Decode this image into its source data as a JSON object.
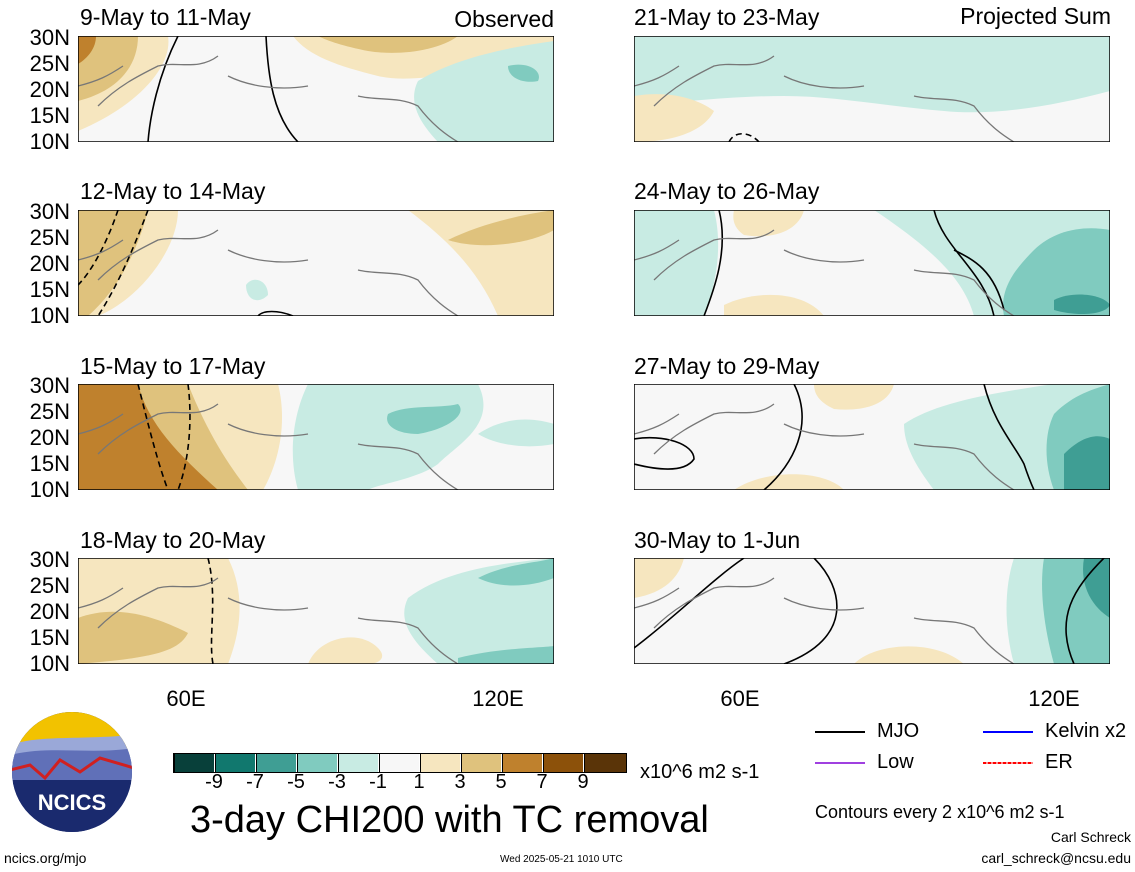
{
  "header": {
    "left_label": "Observed",
    "right_label": "Projected Sum"
  },
  "panels": [
    {
      "title": "9-May to 11-May"
    },
    {
      "title": "12-May to 14-May"
    },
    {
      "title": "15-May to 17-May"
    },
    {
      "title": "18-May to 20-May"
    },
    {
      "title": "21-May to 23-May"
    },
    {
      "title": "24-May to 26-May"
    },
    {
      "title": "27-May to 29-May"
    },
    {
      "title": "30-May to 1-Jun"
    }
  ],
  "axes": {
    "lat_labels": [
      "30N",
      "25N",
      "20N",
      "15N",
      "10N"
    ],
    "lon_labels": [
      "60E",
      "120E"
    ]
  },
  "colorbar": {
    "ticks": [
      "-9",
      "-7",
      "-5",
      "-3",
      "-1",
      "1",
      "3",
      "5",
      "7",
      "9"
    ],
    "units": "x10^6 m2 s-1",
    "colors": [
      "#08403a",
      "#11786e",
      "#3f9e94",
      "#80cbbf",
      "#c8ebe3",
      "#f7f7f7",
      "#f6e6bf",
      "#dfc27d",
      "#bf812d",
      "#8c510a",
      "#5a3408"
    ]
  },
  "legend": [
    {
      "label": "MJO",
      "color": "#000000"
    },
    {
      "label": "Kelvin x2",
      "color": "#0000ff"
    },
    {
      "label": "Low",
      "color": "#a040e0"
    },
    {
      "label": "ER",
      "color": "#ff0000"
    }
  ],
  "contour_note": "Contours every 2 x10^6 m2 s-1",
  "main_title": "3-day CHI200 with TC removal",
  "logo_text": "NCICS",
  "footer": {
    "url": "ncics.org/mjo",
    "timestamp": "Wed 2025-05-21 1010 UTC",
    "author": "Carl Schreck",
    "email": "carl_schreck@ncsu.edu"
  }
}
